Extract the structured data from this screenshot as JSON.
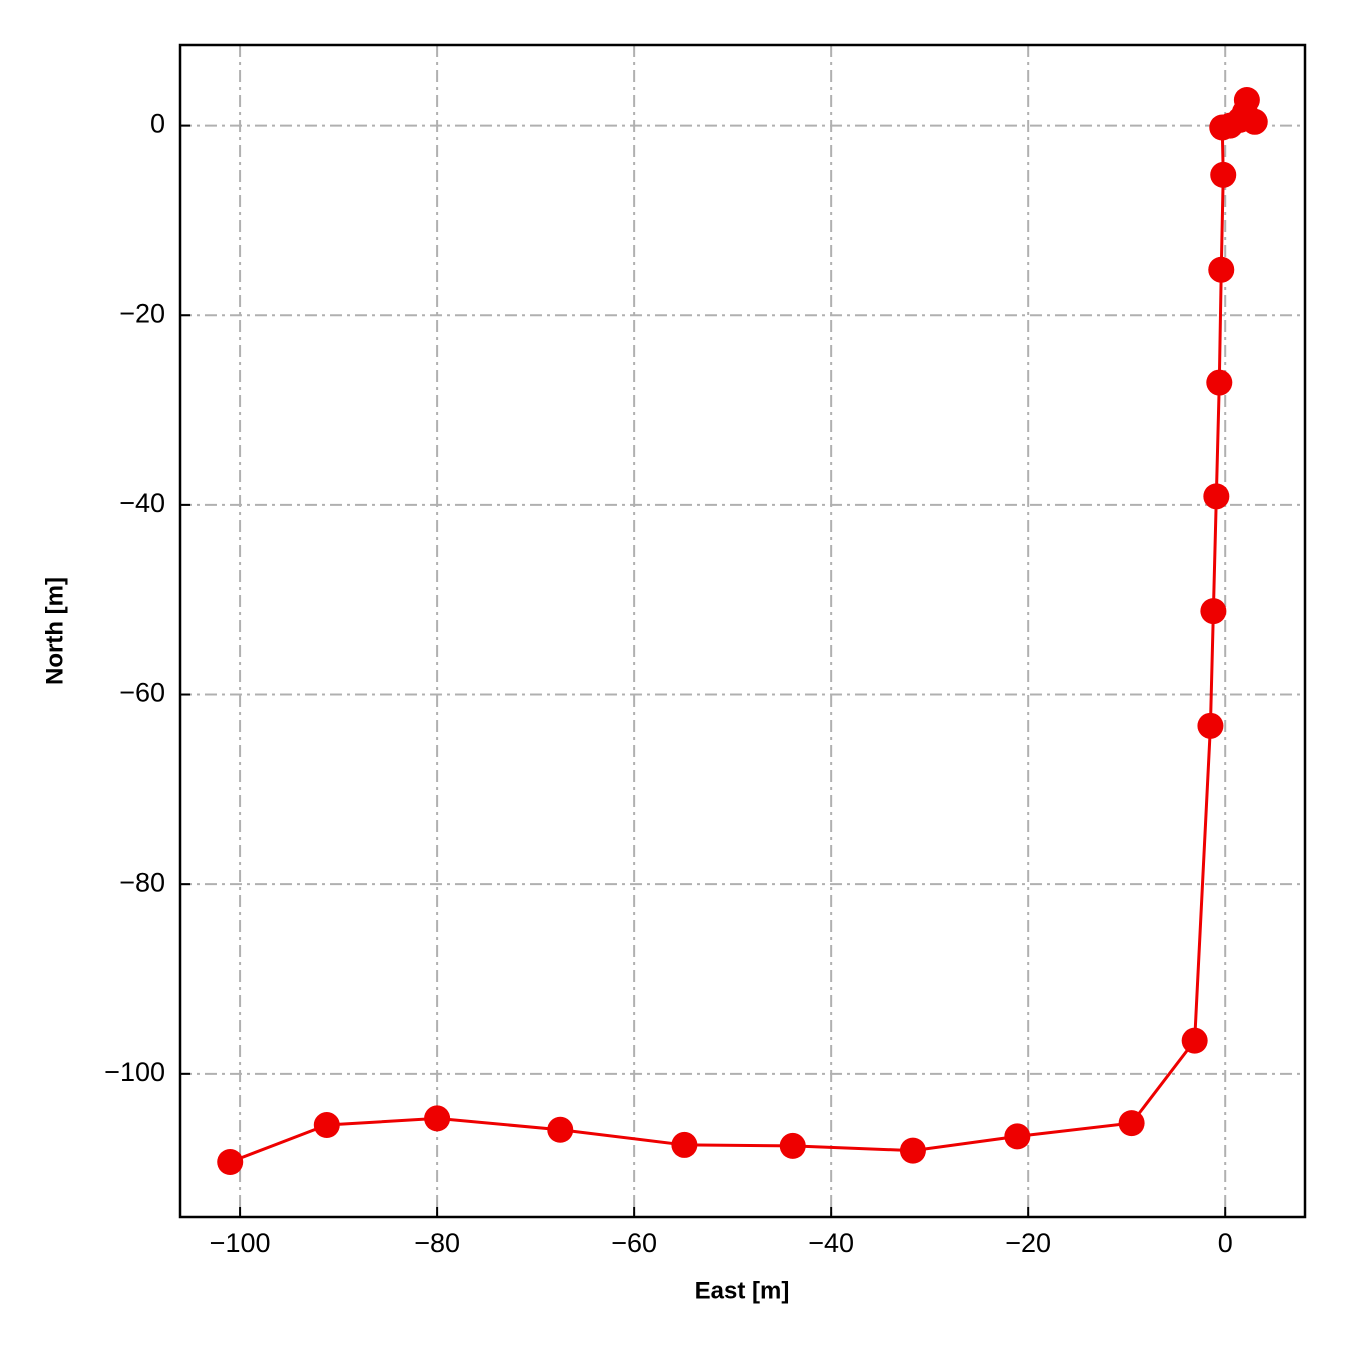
{
  "chart_data": {
    "type": "line",
    "x_label": "East [m]",
    "y_label": "North [m]",
    "x": [
      -101.0,
      -91.2,
      -80.0,
      -67.5,
      -54.9,
      -43.9,
      -31.7,
      -21.1,
      -9.5,
      -3.1,
      -1.5,
      -1.2,
      -0.9,
      -0.6,
      -0.4,
      -0.2,
      -0.3,
      0.5,
      1.5,
      2.2,
      3.0,
      2.0
    ],
    "series": [
      {
        "color": "#ee0000",
        "values": [
          -109.3,
          -105.4,
          -104.7,
          -105.9,
          -107.5,
          -107.6,
          -108.1,
          -106.6,
          -105.2,
          -96.5,
          -63.3,
          -51.2,
          -39.1,
          -27.1,
          -15.2,
          -5.2,
          -0.2,
          0.0,
          0.6,
          2.7,
          0.4,
          1.4
        ]
      }
    ],
    "xlim": [
      -106.1,
      8.1
    ],
    "ylim": [
      -115.1,
      8.5
    ],
    "xticks": [
      {
        "value": -100,
        "label": "−100"
      },
      {
        "value": -80,
        "label": "−80"
      },
      {
        "value": -60,
        "label": "−60"
      },
      {
        "value": -40,
        "label": "−40"
      },
      {
        "value": -20,
        "label": "−20"
      },
      0
    ],
    "yticks": [
      {
        "value": -100,
        "label": "−100"
      },
      {
        "value": -80,
        "label": "−80"
      },
      {
        "value": -60,
        "label": "−60"
      },
      {
        "value": -40,
        "label": "−40"
      },
      {
        "value": -20,
        "label": "−20"
      },
      0
    ],
    "grid": true
  }
}
